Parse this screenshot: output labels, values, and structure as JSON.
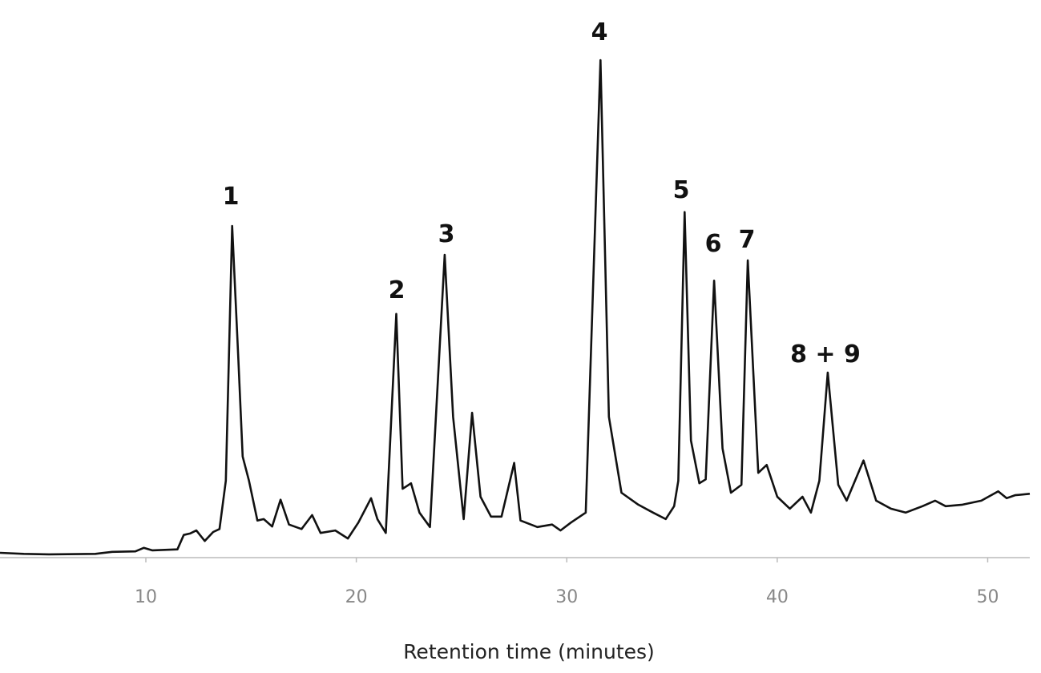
{
  "chart_data": {
    "type": "line",
    "x_label": "Retention time (minutes)",
    "x": [
      3.07,
      4.2,
      5.4,
      7.6,
      8.4,
      9.5,
      9.9,
      10.3,
      11.5,
      11.8,
      12.1,
      12.4,
      12.8,
      13.2,
      13.5,
      13.8,
      14.1,
      14.4,
      14.6,
      14.9,
      15.3,
      15.6,
      16.0,
      16.4,
      16.8,
      17.4,
      17.9,
      18.3,
      19.0,
      19.6,
      20.1,
      20.7,
      21.0,
      21.4,
      21.9,
      22.2,
      22.6,
      23.0,
      23.5,
      24.2,
      24.6,
      25.1,
      25.5,
      25.9,
      26.4,
      26.9,
      27.5,
      27.8,
      28.6,
      29.3,
      29.7,
      30.2,
      30.9,
      31.6,
      32.0,
      32.6,
      33.4,
      34.1,
      34.7,
      35.1,
      35.3,
      35.6,
      35.9,
      36.3,
      36.6,
      37.0,
      37.4,
      37.8,
      38.3,
      38.6,
      39.1,
      39.5,
      40.0,
      40.6,
      41.2,
      41.6,
      42.0,
      42.4,
      42.9,
      43.3,
      44.1,
      44.7,
      45.4,
      46.1,
      46.9,
      47.5,
      48.0,
      48.8,
      49.7,
      50.5,
      50.9,
      51.3,
      52.0
    ],
    "values": [
      0.8,
      0.6,
      0.5,
      0.6,
      1,
      1.1,
      1.8,
      1.3,
      1.5,
      4.4,
      4.7,
      5.3,
      3.2,
      5,
      5.6,
      15.3,
      66.6,
      39.5,
      20.2,
      15.3,
      7.3,
      7.6,
      6.1,
      11.5,
      6.5,
      5.6,
      8.4,
      4.8,
      5.3,
      3.7,
      6.9,
      11.8,
      7.6,
      4.8,
      48.9,
      13.7,
      14.8,
      8.9,
      6,
      60.8,
      28.2,
      7.6,
      29,
      12.1,
      8.1,
      8.1,
      18.9,
      7.3,
      6,
      6.5,
      5.3,
      6.9,
      8.9,
      100,
      28.2,
      12.9,
      10.5,
      8.9,
      7.6,
      10.2,
      15.3,
      69.4,
      23.4,
      14.8,
      15.6,
      55.6,
      21.8,
      12.9,
      14.5,
      59.7,
      16.9,
      18.5,
      12.1,
      9.7,
      12.1,
      8.9,
      15.3,
      37.1,
      14.5,
      11.3,
      19.4,
      11.3,
      9.7,
      8.9,
      10.2,
      11.3,
      10.2,
      10.5,
      11.3,
      13.2,
      11.8,
      12.4,
      12.7
    ],
    "color": "#111111",
    "xlim": [
      3.07,
      52.0
    ],
    "ylim": [
      0,
      100
    ],
    "xticks": [
      10,
      20,
      30,
      40,
      50
    ],
    "annotations": [
      "1",
      "2",
      "3",
      "4",
      "5",
      "6",
      "7",
      "8 + 9"
    ]
  }
}
